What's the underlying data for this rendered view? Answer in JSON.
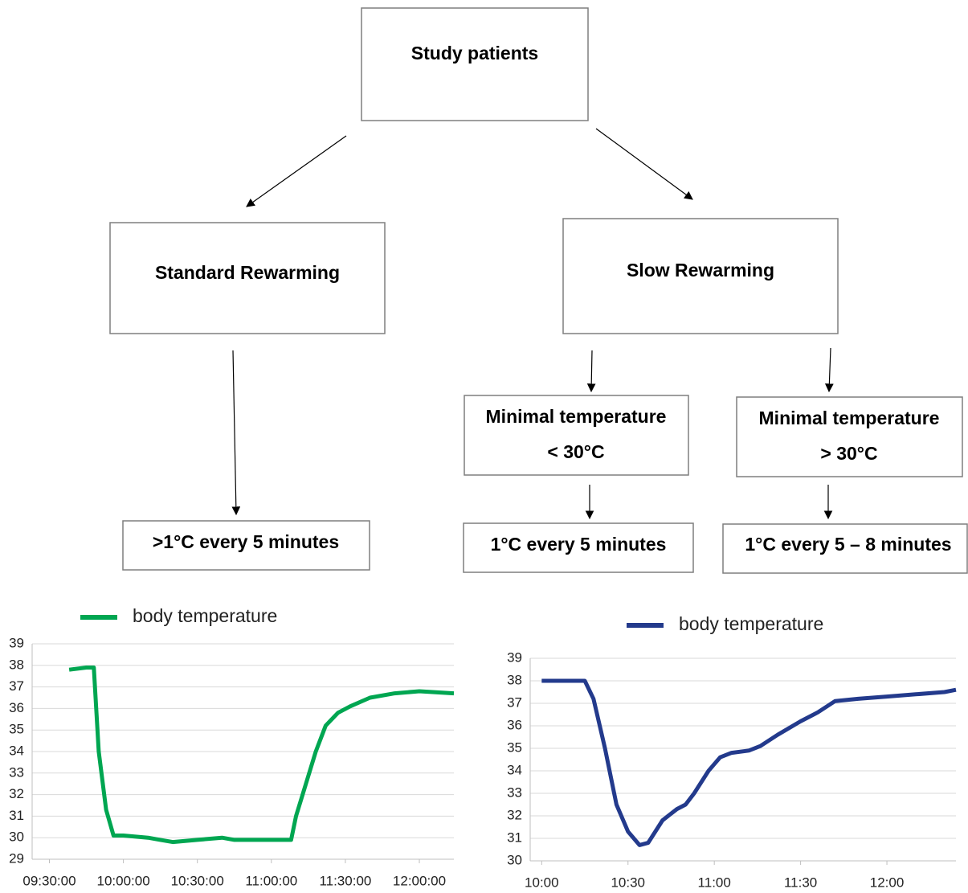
{
  "diagram": {
    "nodes": [
      {
        "lines": [
          "Study patients"
        ]
      },
      {
        "lines": [
          "Standard Rewarming"
        ]
      },
      {
        "lines": [
          "Slow Rewarming"
        ]
      },
      {
        "lines": [
          "Minimal temperature",
          "< 30°C"
        ]
      },
      {
        "lines": [
          "Minimal temperature",
          "> 30°C"
        ]
      },
      {
        "lines": [
          ">1°C every 5 minutes"
        ]
      },
      {
        "lines": [
          "1°C every 5 minutes"
        ]
      },
      {
        "lines": [
          "1°C every 5 – 8 minutes"
        ]
      }
    ]
  },
  "chart_data": [
    {
      "type": "line",
      "x": [
        "09:38:00",
        "09:45:00",
        "09:48:00",
        "09:50:00",
        "09:53:00",
        "09:56:00",
        "10:00:00",
        "10:10:00",
        "10:15:00",
        "10:20:00",
        "10:30:00",
        "10:40:00",
        "10:45:00",
        "11:00:00",
        "11:08:00",
        "11:10:00",
        "11:14:00",
        "11:18:00",
        "11:22:00",
        "11:27:00",
        "11:32:00",
        "11:40:00",
        "11:50:00",
        "12:00:00",
        "12:14:00"
      ],
      "series": [
        {
          "name": "body temperature",
          "color": "#00a651",
          "values": [
            37.8,
            37.9,
            37.9,
            34,
            31.3,
            30.1,
            30.1,
            30.0,
            29.9,
            29.8,
            29.9,
            30.0,
            29.9,
            29.9,
            29.9,
            31,
            32.5,
            34,
            35.2,
            35.8,
            36.1,
            36.5,
            36.7,
            36.8,
            36.7
          ]
        }
      ],
      "xlim": [
        "09:23:00",
        "12:14:00"
      ],
      "xticks": [
        "09:30:00",
        "10:00:00",
        "10:30:00",
        "11:00:00",
        "11:30:00",
        "12:00:00"
      ],
      "ylim": [
        29,
        39
      ],
      "yticks": [
        29,
        30,
        31,
        32,
        33,
        34,
        35,
        36,
        37,
        38,
        39
      ],
      "grid": true
    },
    {
      "type": "line",
      "x": [
        "10:00",
        "10:15",
        "10:18",
        "10:22",
        "10:26",
        "10:30",
        "10:34",
        "10:37",
        "10:42",
        "10:47",
        "10:50",
        "10:53",
        "10:58",
        "11:02",
        "11:06",
        "11:12",
        "11:16",
        "11:22",
        "11:30",
        "11:36",
        "11:42",
        "11:50",
        "12:00",
        "12:10",
        "12:20",
        "12:24"
      ],
      "series": [
        {
          "name": "body temperature",
          "color": "#233a8c",
          "values": [
            38,
            38,
            37.2,
            35,
            32.5,
            31.3,
            30.7,
            30.8,
            31.8,
            32.3,
            32.5,
            33,
            34,
            34.6,
            34.8,
            34.9,
            35.1,
            35.6,
            36.2,
            36.6,
            37.1,
            37.2,
            37.3,
            37.4,
            37.5,
            37.6
          ]
        }
      ],
      "xlim": [
        "09:56",
        "12:24"
      ],
      "xticks": [
        "10:00",
        "10:30",
        "11:00",
        "11:30",
        "12:00"
      ],
      "ylim": [
        30,
        39
      ],
      "yticks": [
        30,
        31,
        32,
        33,
        34,
        35,
        36,
        37,
        38,
        39
      ],
      "grid": true
    }
  ]
}
